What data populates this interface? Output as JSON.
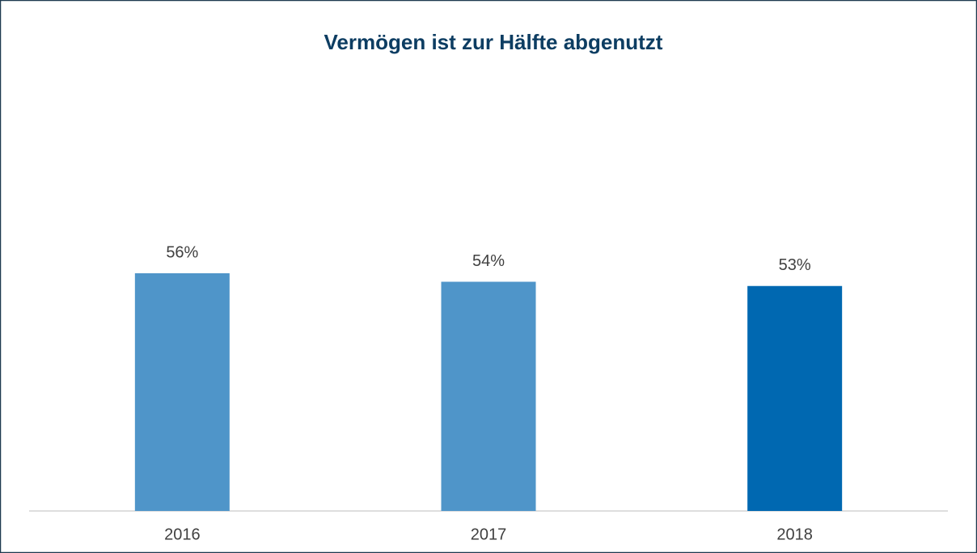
{
  "chart_data": {
    "type": "bar",
    "title": "Vermögen ist zur Hälfte abgenutzt",
    "categories": [
      "2016",
      "2017",
      "2018"
    ],
    "values": [
      56,
      54,
      53
    ],
    "value_labels": [
      "56%",
      "54%",
      "53%"
    ],
    "colors": [
      "#4f95c9",
      "#4f95c9",
      "#0068b1"
    ]
  }
}
